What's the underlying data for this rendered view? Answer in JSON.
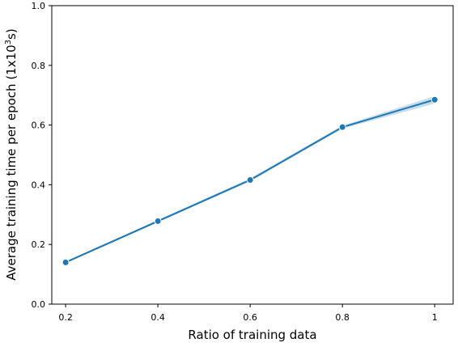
{
  "chart_data": {
    "type": "line",
    "title": "",
    "xlabel": "Ratio of training data",
    "ylabel_prefix": "Average training time per epoch (1x10",
    "ylabel_sup": "3",
    "ylabel_suffix": "s)",
    "xlim": [
      0.17,
      1.04
    ],
    "ylim": [
      0.0,
      1.0
    ],
    "xticks": [
      0.2,
      0.4,
      0.6,
      0.8,
      1.0
    ],
    "xtick_labels": [
      "0.2",
      "0.4",
      "0.6",
      "0.8",
      "1"
    ],
    "yticks": [
      0.0,
      0.2,
      0.4,
      0.6,
      0.8,
      1.0
    ],
    "ytick_labels": [
      "0.0",
      "0.2",
      "0.4",
      "0.6",
      "0.8",
      "1.0"
    ],
    "grid": false,
    "series": [
      {
        "x": [
          0.2,
          0.4,
          0.6,
          0.8,
          1.0
        ],
        "values": [
          0.14,
          0.278,
          0.416,
          0.593,
          0.685
        ],
        "ci_low": [
          0.137,
          0.274,
          0.411,
          0.588,
          0.672
        ],
        "ci_high": [
          0.143,
          0.282,
          0.421,
          0.598,
          0.697
        ],
        "color": "#1f77b4",
        "band_color": "#1f77b4"
      }
    ]
  }
}
